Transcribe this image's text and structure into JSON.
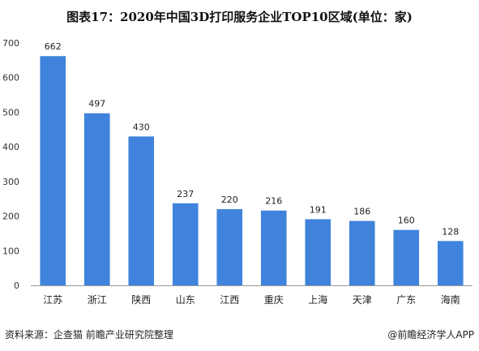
{
  "footer": {
    "source": "资料来源：企查猫 前瞻产业研究院整理",
    "brand": "@前瞻经济学人APP"
  },
  "chart_data": {
    "type": "bar",
    "title": "图表17：2020年中国3D打印服务企业TOP10区域(单位：家)",
    "xlabel": "",
    "ylabel": "",
    "categories": [
      "江苏",
      "浙江",
      "陕西",
      "山东",
      "江西",
      "重庆",
      "上海",
      "天津",
      "广东",
      "海南"
    ],
    "values": [
      662,
      497,
      430,
      237,
      220,
      216,
      191,
      186,
      160,
      128
    ],
    "ylim": [
      0,
      700
    ],
    "yticks": [
      0,
      100,
      200,
      300,
      400,
      500,
      600,
      700
    ],
    "grid": false,
    "legend": "none",
    "bar_color": "#3f83dc",
    "axis_color": "#999999"
  }
}
